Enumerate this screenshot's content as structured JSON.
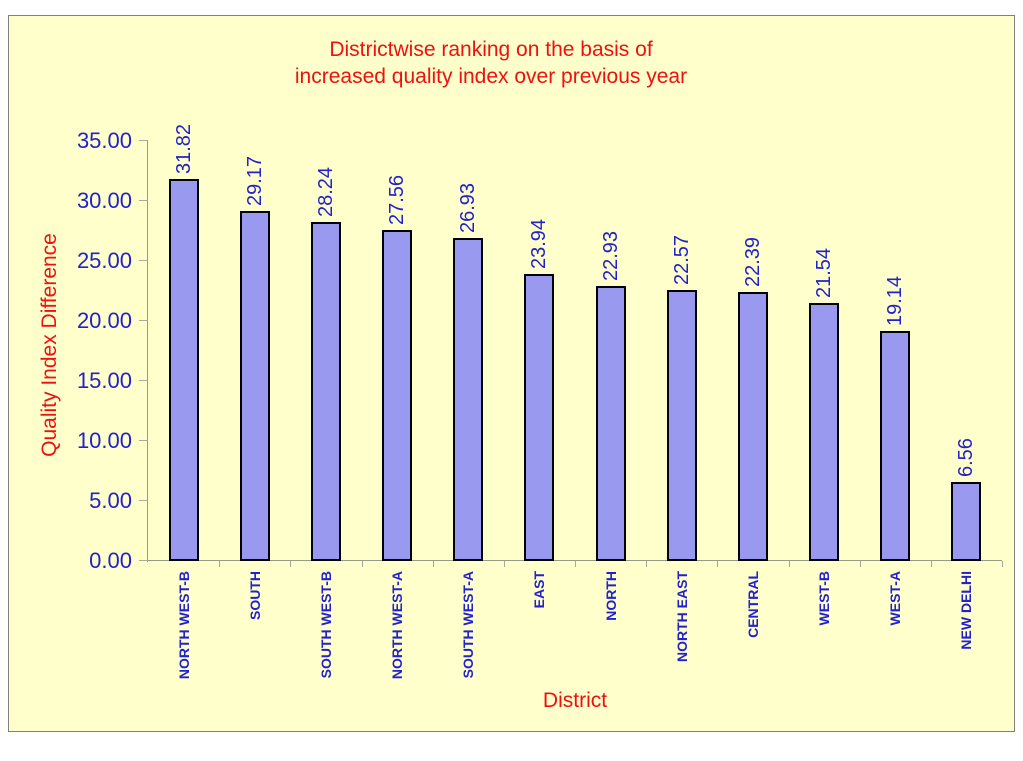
{
  "slide": {
    "title_line1": "Districtwise ranking on the basis of",
    "title_line2": "increased quality index over previous year"
  },
  "chart_data": {
    "type": "bar",
    "title": "Districtwise ranking on the basis of increased quality index over previous year",
    "xlabel": "District",
    "ylabel": "Quality Index Difference",
    "categories": [
      "NORTH WEST-B",
      "SOUTH",
      "SOUTH WEST-B",
      "NORTH WEST-A",
      "SOUTH WEST-A",
      "EAST",
      "NORTH",
      "NORTH EAST",
      "CENTRAL",
      "WEST-B",
      "WEST-A",
      "NEW DELHI"
    ],
    "values": [
      31.82,
      29.17,
      28.24,
      27.56,
      26.93,
      23.94,
      22.93,
      22.57,
      22.39,
      21.54,
      19.14,
      6.56
    ],
    "value_labels": [
      "31.82",
      "29.17",
      "28.24",
      "27.56",
      "26.93",
      "23.94",
      "22.93",
      "22.57",
      "22.39",
      "21.54",
      "19.14",
      "6.56"
    ],
    "ylim": [
      0,
      35
    ],
    "ytick_interval": 5,
    "ytick_labels": [
      "0.00",
      "5.00",
      "10.00",
      "15.00",
      "20.00",
      "25.00",
      "30.00",
      "35.00"
    ],
    "grid": false,
    "legend": "none",
    "bar_orientation": "vertical",
    "value_label_rotation": -90,
    "category_label_rotation": -90
  },
  "colors": {
    "page_background": "#FFFFFF",
    "panel_background": "#FFFFCC",
    "panel_border": "#808080",
    "bar_fill": "#9999F0",
    "bar_border": "#000000",
    "label_blue": "#2222CC",
    "title_red": "#EE1111",
    "axis_line": "#999988",
    "tick_mark": "#AAAA99"
  }
}
